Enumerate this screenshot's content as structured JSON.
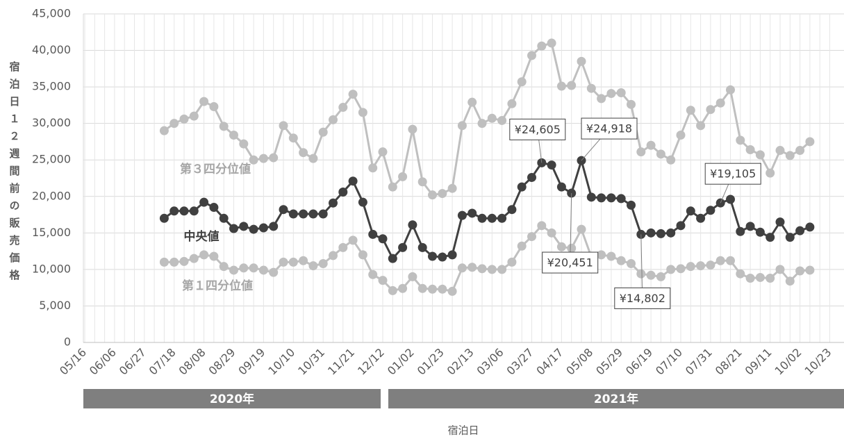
{
  "chart_data": {
    "type": "line",
    "x_title": "宿泊日",
    "y_title": "宿泊日１２週間前の販売価格",
    "year_bands": [
      "2020年",
      "2021年"
    ],
    "categories": [
      "05/16",
      null,
      null,
      "06/06",
      null,
      null,
      "06/27",
      null,
      null,
      "07/18",
      null,
      null,
      "08/08",
      null,
      null,
      "08/29",
      null,
      null,
      "09/19",
      null,
      null,
      "10/10",
      null,
      null,
      "10/31",
      null,
      null,
      "11/21",
      null,
      null,
      "12/12",
      null,
      null,
      "01/02",
      null,
      null,
      "01/23",
      null,
      null,
      "02/13",
      null,
      null,
      "03/06",
      null,
      null,
      "03/27",
      null,
      null,
      "04/17",
      null,
      null,
      "05/08",
      null,
      null,
      "05/29",
      null,
      null,
      "06/19",
      null,
      null,
      "07/10",
      null,
      null,
      "07/31",
      null,
      null,
      "08/21",
      null,
      null,
      "09/11",
      null,
      null,
      "10/02",
      null,
      null,
      "10/23"
    ],
    "series": [
      {
        "name": "第３四分位値",
        "color": "#bfbfbf",
        "label_color": "#a6a6a6",
        "values": [
          null,
          null,
          null,
          null,
          null,
          null,
          null,
          null,
          29000,
          30000,
          30600,
          31000,
          33000,
          32300,
          29600,
          28400,
          27200,
          25000,
          25200,
          25300,
          29700,
          28000,
          26000,
          25200,
          28800,
          30500,
          32200,
          34000,
          31500,
          23900,
          26100,
          21300,
          22700,
          29200,
          22000,
          20200,
          20400,
          21100,
          29700,
          32900,
          30000,
          30700,
          30400,
          32700,
          35700,
          39300,
          40600,
          41000,
          35100,
          35200,
          38500,
          34800,
          33400,
          34100,
          34200,
          32600,
          26100,
          27000,
          25800,
          25000,
          28400,
          31800,
          29700,
          31900,
          32800,
          34600,
          27700,
          26400,
          25700,
          23200,
          26300,
          25600,
          26300,
          27500,
          null,
          null
        ]
      },
      {
        "name": "中央値",
        "color": "#404040",
        "label_color": "#404040",
        "values": [
          null,
          null,
          null,
          null,
          null,
          null,
          null,
          null,
          17000,
          18000,
          18000,
          18000,
          19200,
          18500,
          17000,
          15600,
          15900,
          15500,
          15700,
          15900,
          18200,
          17600,
          17600,
          17600,
          17600,
          19100,
          20600,
          22100,
          19200,
          14800,
          14200,
          11500,
          13000,
          16100,
          13000,
          11800,
          11700,
          12000,
          17400,
          17700,
          17000,
          17000,
          17000,
          18200,
          21300,
          22600,
          24605,
          24300,
          21300,
          20451,
          24918,
          19900,
          19800,
          19800,
          19700,
          18800,
          14802,
          15000,
          14900,
          15000,
          16000,
          18000,
          17000,
          18100,
          19105,
          19600,
          15200,
          15900,
          15100,
          14400,
          16500,
          14400,
          15300,
          15800,
          null,
          null
        ],
        "value_labels": [
          null,
          null,
          null,
          null,
          null,
          null,
          null,
          null,
          null,
          null,
          null,
          null,
          null,
          null,
          null,
          null,
          null,
          null,
          null,
          null,
          null,
          null,
          null,
          null,
          null,
          null,
          null,
          null,
          null,
          null,
          null,
          null,
          null,
          null,
          null,
          null,
          null,
          null,
          null,
          null,
          null,
          null,
          null,
          null,
          null,
          null,
          "¥24,605",
          null,
          null,
          "¥20,451",
          "¥24,918",
          null,
          null,
          null,
          null,
          null,
          "¥14,802",
          null,
          null,
          null,
          null,
          null,
          null,
          null,
          "¥19,105",
          null,
          null,
          null,
          null,
          null,
          null,
          null,
          null,
          null,
          null,
          null
        ]
      },
      {
        "name": "第１四分位値",
        "color": "#bfbfbf",
        "label_color": "#a6a6a6",
        "values": [
          null,
          null,
          null,
          null,
          null,
          null,
          null,
          null,
          11000,
          11000,
          11100,
          11500,
          12000,
          11800,
          10400,
          9900,
          10200,
          10200,
          9900,
          9600,
          11000,
          11000,
          11200,
          10500,
          10800,
          11900,
          13000,
          14000,
          12000,
          9300,
          8500,
          7100,
          7400,
          9000,
          7400,
          7300,
          7300,
          7000,
          10200,
          10300,
          10100,
          10000,
          10000,
          11000,
          13200,
          14500,
          16000,
          15000,
          13100,
          12900,
          15500,
          11700,
          12000,
          11800,
          11200,
          10800,
          9400,
          9200,
          9000,
          10000,
          10100,
          10400,
          10500,
          10600,
          11200,
          11200,
          9400,
          8800,
          8900,
          8800,
          10000,
          8400,
          9800,
          9900,
          null,
          null
        ]
      }
    ],
    "ylim": [
      0,
      45000
    ],
    "yticks": [
      0,
      {
        "value": 5000,
        "label": "5,000"
      },
      {
        "value": 10000,
        "label": "10,000"
      },
      {
        "value": 15000,
        "label": "15,000"
      },
      {
        "value": 20000,
        "label": "20,000"
      },
      {
        "value": 25000,
        "label": "25,000"
      },
      {
        "value": 30000,
        "label": "30,000"
      },
      {
        "value": 35000,
        "label": "35,000"
      },
      {
        "value": 40000,
        "label": "40,000"
      },
      {
        "value": 45000,
        "label": "45,000"
      }
    ],
    "grid": true
  }
}
